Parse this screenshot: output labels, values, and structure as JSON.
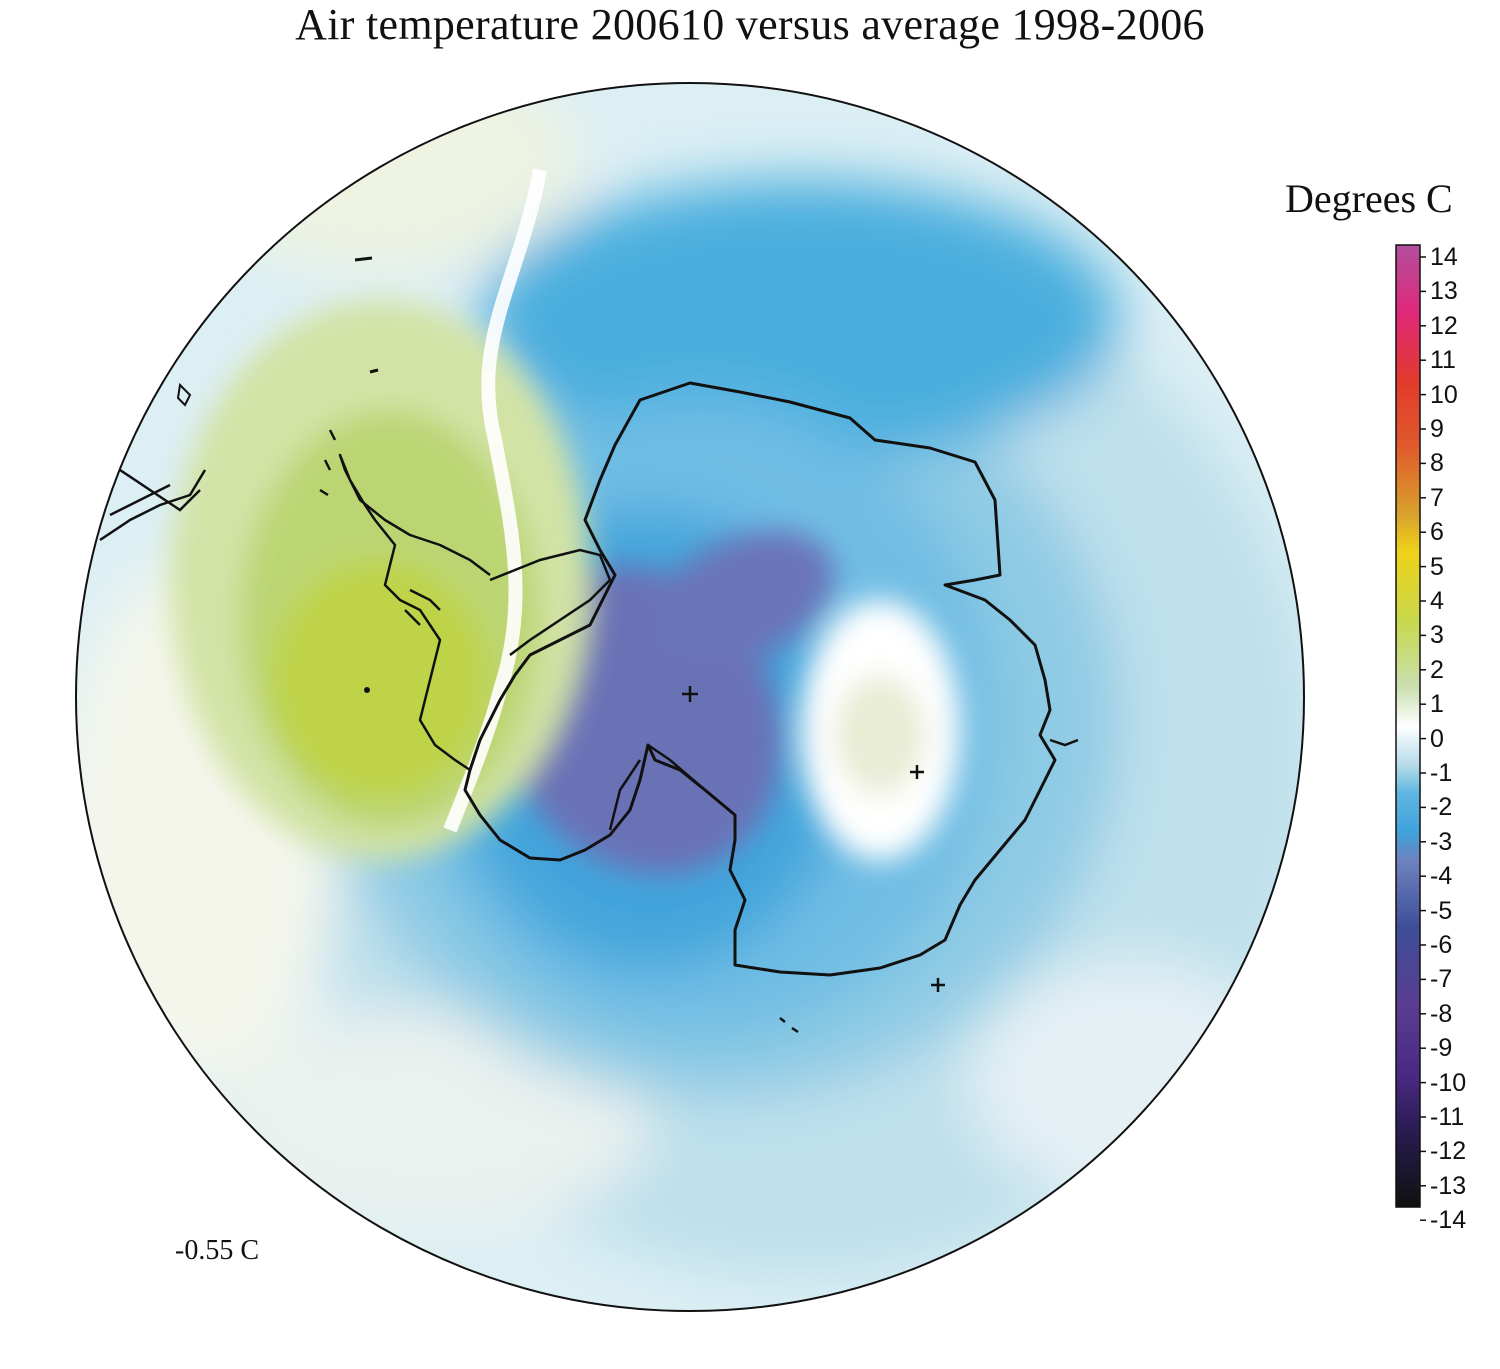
{
  "title": "Air temperature 200610 versus average 1998-2006",
  "legend": {
    "title": "Degrees C",
    "min": -14,
    "max": 14,
    "labels": [
      "14",
      "13",
      "12",
      "11",
      "10",
      "9",
      "8",
      "7",
      "6",
      "5",
      "4",
      "3",
      "2",
      "1",
      "0",
      "-1",
      "-2",
      "-3",
      "-4",
      "-5",
      "-6",
      "-7",
      "-8",
      "-9",
      "-10",
      "-11",
      "-12",
      "-13",
      "-14"
    ]
  },
  "mean_value": "-0.55 C",
  "map": {
    "projection": "south polar stereographic",
    "anomaly_regions": [
      {
        "name": "Antarctic Peninsula / Weddell warm anomaly",
        "value": 3.5,
        "color": "#b9d04a"
      },
      {
        "name": "East Antarctic interior cold anomaly",
        "value": -4,
        "color": "#6a6fb0"
      },
      {
        "name": "Indian Ocean sector cold anomaly",
        "value": -2.5,
        "color": "#4aa7dc"
      },
      {
        "name": "East Antarctic coast near-zero anomaly",
        "value": 0.3,
        "color": "#f2f4e4"
      }
    ]
  },
  "colors": {
    "pos_14": "#b24f9e",
    "pos_12": "#e0287a",
    "pos_10": "#e23a2c",
    "pos_8": "#e05a2c",
    "pos_6": "#d8a22c",
    "pos_5": "#efd21a",
    "pos_3": "#c8d84a",
    "pos_1": "#c9dfb0",
    "zero": "#ffffff",
    "neg_1": "#b8dce8",
    "neg_2": "#5fb6e0",
    "neg_3": "#3fa2dc",
    "neg_4": "#6f82bf",
    "neg_6": "#3d4e98",
    "neg_8": "#5a3d90",
    "neg_10": "#4b2a86",
    "neg_12": "#251a4a",
    "neg_14": "#111111"
  }
}
